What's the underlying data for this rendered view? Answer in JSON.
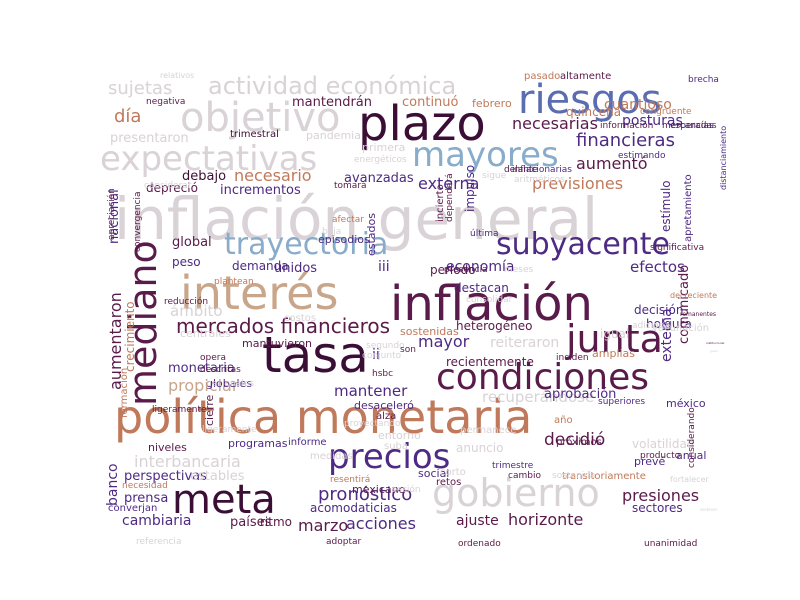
{
  "palette": {
    "deep": "#3b0f35",
    "plum": "#5a1a4a",
    "purple": "#4e2a84",
    "blue": "#5a6db0",
    "teal": "#8aaccb",
    "tan": "#c9a58a",
    "rust": "#c0795a",
    "grey": "#d9d2d6",
    "mauve": "#b09aa8"
  },
  "cloud": {
    "words": [
      "inflación general",
      "política monetaria",
      "plazo",
      "tasa",
      "inflación",
      "riesgos",
      "objetivo",
      "mayores",
      "expectativas",
      "actividad económica",
      "trayectoria",
      "subyacente",
      "interés",
      "mediano",
      "junta",
      "condiciones",
      "meta",
      "gobierno",
      "precios",
      "mercados financieros",
      "financieras",
      "aumentó",
      "previsiones",
      "externa",
      "necesarias",
      "sujetas",
      "día",
      "mantendrán",
      "continuó",
      "febrero",
      "cuantioso",
      "pasado",
      "altamente",
      "brecha",
      "posturas",
      "quincena",
      "presentaron",
      "trimestral",
      "pandemia",
      "necesario",
      "incrementos",
      "avanzadas",
      "debajo",
      "nacional",
      "depreció",
      "global",
      "peso",
      "demanda",
      "unidos",
      "iii",
      "economía",
      "efectos",
      "aumentaron",
      "mayor",
      "reiteraron",
      "decisión",
      "holgura",
      "ámbito",
      "monetaria",
      "mantuvieron",
      "heterogéneo",
      "recientemente",
      "comunicado",
      "ii",
      "propiciar",
      "globales",
      "mantener",
      "desaceleró",
      "recuperándose",
      "aprobación",
      "banco",
      "crecimiento",
      "méxico",
      "amplias",
      "interbancaria",
      "niveles",
      "programas",
      "informe",
      "volatilidad",
      "decidió",
      "perspectivas",
      "estables",
      "pronóstico",
      "prensa",
      "acomodaticias",
      "mexicano",
      "marzo",
      "acciones",
      "ajuste",
      "horizonte",
      "presiones",
      "sectores",
      "cambiaria",
      "países",
      "ritmo",
      "anual",
      "prevé",
      "externa",
      "estímulo",
      "apretamiento",
      "esperadas",
      "vacunación",
      "igual",
      "destacan",
      "periodo",
      "impulso",
      "incierto",
      "dependerá",
      "estimando",
      "mercancías",
      "información",
      "inflacionarias",
      "energéticos",
      "primera",
      "última",
      "episodios",
      "estados",
      "centrales",
      "costos",
      "proyectando",
      "alza",
      "entorno",
      "medidas",
      "social",
      "corto",
      "trimestre",
      "cambio",
      "transitoriamente",
      "producto",
      "considerando",
      "próximos",
      "anuncio",
      "permanece",
      "año",
      "superiores",
      "ligeramente",
      "formación",
      "cierre",
      "necesidad",
      "converjan",
      "referencia",
      "adoptar",
      "ordenado",
      "unanimidad",
      "resentirá",
      "sostenida",
      "sesión",
      "retos",
      "relativos",
      "negativa",
      "baja",
      "tomará",
      "congruente",
      "afectar",
      "considerar",
      "distanciamiento",
      "aritméticos",
      "sigue",
      "presencia",
      "meses",
      "gasto",
      "adicional",
      "inciden",
      "conjunto",
      "segundo",
      "plantean",
      "opera",
      "son",
      "significativa",
      "descritas",
      "nacionales",
      "ligeramente",
      "apreciación",
      "convergencia",
      "reducción",
      "consolidar",
      "delante",
      "decreciente",
      "remanentes",
      "institucional",
      "fortalecer",
      "sostener",
      "hsbc",
      "suba",
      "sostenidas",
      "disminución",
      "anticipan",
      "e"
    ]
  }
}
